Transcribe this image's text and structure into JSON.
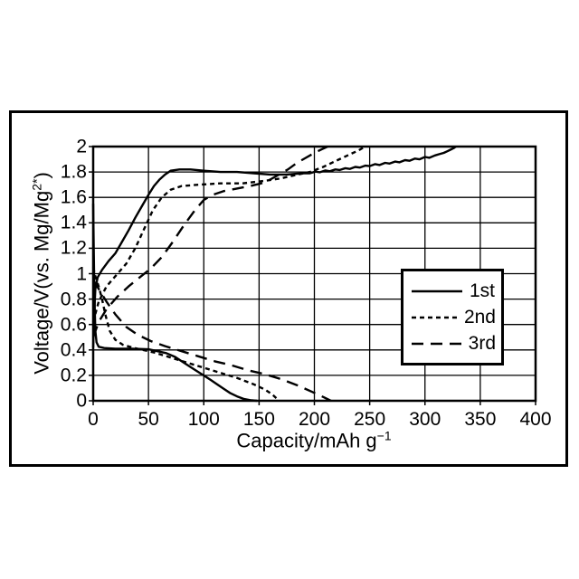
{
  "figure": {
    "background": "#ffffff",
    "frame_color": "#000000"
  },
  "colors": {
    "line": "#000000",
    "grid": "#000000",
    "background": "#ffffff"
  },
  "chart_data": {
    "type": "line",
    "title": "",
    "xlabel": {
      "prefix": "Capacity/mAh g",
      "sup": "−1",
      "suffix": ""
    },
    "ylabel": {
      "prefix": "Voltage/V(vs. Mg/Mg",
      "sup": "2*",
      "suffix": ")"
    },
    "xlim": [
      0,
      400
    ],
    "ylim": [
      0,
      2
    ],
    "grid": true,
    "x_ticks": [
      0,
      50,
      100,
      150,
      200,
      250,
      300,
      350,
      400
    ],
    "x_tick_labels": [
      "0",
      "50",
      "100",
      "150",
      "200",
      "250",
      "300",
      "350",
      "400"
    ],
    "y_ticks": [
      0,
      0.2,
      0.4,
      0.6,
      0.8,
      1,
      1.2,
      1.4,
      1.6,
      1.8,
      2
    ],
    "y_tick_labels": [
      "0",
      "0.2",
      "0.4",
      "0.6",
      "0.8",
      "1",
      "1.2",
      "1.4",
      "1.6",
      "1.8",
      "2"
    ],
    "legend": {
      "position": "inside-right",
      "entries": [
        {
          "label": "1st",
          "style": "solid"
        },
        {
          "label": "2nd",
          "style": "short-dash"
        },
        {
          "label": "3rd",
          "style": "long-dash"
        }
      ]
    },
    "series": [
      {
        "name": "1st",
        "branch": "discharge",
        "style": "solid",
        "points": [
          [
            0,
            1.55
          ],
          [
            0.5,
            1.2
          ],
          [
            1,
            0.9
          ],
          [
            1.5,
            0.7
          ],
          [
            2,
            0.55
          ],
          [
            3,
            0.46
          ],
          [
            5,
            0.425
          ],
          [
            10,
            0.415
          ],
          [
            20,
            0.41
          ],
          [
            35,
            0.41
          ],
          [
            50,
            0.405
          ],
          [
            58,
            0.39
          ],
          [
            66,
            0.375
          ],
          [
            74,
            0.345
          ],
          [
            82,
            0.3
          ],
          [
            90,
            0.255
          ],
          [
            98,
            0.21
          ],
          [
            106,
            0.165
          ],
          [
            112,
            0.13
          ],
          [
            118,
            0.095
          ],
          [
            124,
            0.06
          ],
          [
            130,
            0.035
          ],
          [
            136,
            0.015
          ],
          [
            142,
            0.005
          ],
          [
            148,
            0
          ]
        ]
      },
      {
        "name": "1st",
        "branch": "charge",
        "style": "solid",
        "points": [
          [
            0,
            0.42
          ],
          [
            1,
            0.7
          ],
          [
            2,
            0.88
          ],
          [
            4,
            0.97
          ],
          [
            8,
            1.03
          ],
          [
            14,
            1.1
          ],
          [
            20,
            1.16
          ],
          [
            26,
            1.25
          ],
          [
            32,
            1.34
          ],
          [
            38,
            1.44
          ],
          [
            44,
            1.53
          ],
          [
            50,
            1.62
          ],
          [
            55,
            1.69
          ],
          [
            60,
            1.74
          ],
          [
            65,
            1.78
          ],
          [
            70,
            1.81
          ],
          [
            78,
            1.82
          ],
          [
            88,
            1.82
          ],
          [
            100,
            1.81
          ],
          [
            115,
            1.8
          ],
          [
            130,
            1.8
          ],
          [
            145,
            1.79
          ],
          [
            160,
            1.78
          ],
          [
            175,
            1.78
          ],
          [
            190,
            1.79
          ],
          [
            196,
            1.79
          ],
          [
            201,
            1.803
          ],
          [
            205,
            1.798
          ],
          [
            210,
            1.812
          ],
          [
            214,
            1.806
          ],
          [
            219,
            1.82
          ],
          [
            223,
            1.816
          ],
          [
            228,
            1.83
          ],
          [
            232,
            1.824
          ],
          [
            237,
            1.84
          ],
          [
            241,
            1.835
          ],
          [
            246,
            1.85
          ],
          [
            250,
            1.846
          ],
          [
            255,
            1.862
          ],
          [
            259,
            1.855
          ],
          [
            264,
            1.872
          ],
          [
            268,
            1.866
          ],
          [
            273,
            1.882
          ],
          [
            277,
            1.876
          ],
          [
            282,
            1.893
          ],
          [
            286,
            1.888
          ],
          [
            291,
            1.905
          ],
          [
            295,
            1.9
          ],
          [
            300,
            1.918
          ],
          [
            304,
            1.912
          ],
          [
            309,
            1.93
          ],
          [
            313,
            1.94
          ],
          [
            317,
            1.95
          ],
          [
            320,
            1.962
          ],
          [
            323,
            1.975
          ],
          [
            326,
            1.988
          ],
          [
            328,
            2
          ]
        ]
      },
      {
        "name": "2nd",
        "branch": "discharge",
        "style": "short-dash",
        "points": [
          [
            0,
            1.05
          ],
          [
            2,
            0.98
          ],
          [
            5,
            0.9
          ],
          [
            8,
            0.8
          ],
          [
            11,
            0.68
          ],
          [
            15,
            0.55
          ],
          [
            20,
            0.48
          ],
          [
            27,
            0.44
          ],
          [
            35,
            0.42
          ],
          [
            45,
            0.4
          ],
          [
            55,
            0.38
          ],
          [
            70,
            0.34
          ],
          [
            85,
            0.3
          ],
          [
            100,
            0.26
          ],
          [
            115,
            0.22
          ],
          [
            130,
            0.18
          ],
          [
            145,
            0.13
          ],
          [
            155,
            0.09
          ],
          [
            162,
            0.05
          ],
          [
            168,
            0
          ]
        ]
      },
      {
        "name": "2nd",
        "branch": "charge",
        "style": "short-dash",
        "points": [
          [
            0,
            0.62
          ],
          [
            5,
            0.78
          ],
          [
            12,
            0.9
          ],
          [
            20,
            0.98
          ],
          [
            30,
            1.08
          ],
          [
            38,
            1.2
          ],
          [
            46,
            1.35
          ],
          [
            54,
            1.5
          ],
          [
            62,
            1.6
          ],
          [
            70,
            1.66
          ],
          [
            80,
            1.69
          ],
          [
            95,
            1.7
          ],
          [
            115,
            1.71
          ],
          [
            135,
            1.71
          ],
          [
            155,
            1.73
          ],
          [
            170,
            1.75
          ],
          [
            185,
            1.78
          ],
          [
            196,
            1.8
          ],
          [
            208,
            1.84
          ],
          [
            220,
            1.89
          ],
          [
            230,
            1.93
          ],
          [
            240,
            1.97
          ],
          [
            246,
            2
          ]
        ]
      },
      {
        "name": "3rd",
        "branch": "discharge",
        "style": "long-dash",
        "points": [
          [
            0,
            0.95
          ],
          [
            5,
            0.88
          ],
          [
            12,
            0.78
          ],
          [
            20,
            0.68
          ],
          [
            30,
            0.58
          ],
          [
            40,
            0.52
          ],
          [
            52,
            0.47
          ],
          [
            65,
            0.43
          ],
          [
            80,
            0.39
          ],
          [
            95,
            0.35
          ],
          [
            110,
            0.31
          ],
          [
            125,
            0.28
          ],
          [
            140,
            0.24
          ],
          [
            155,
            0.21
          ],
          [
            170,
            0.17
          ],
          [
            185,
            0.12
          ],
          [
            198,
            0.07
          ],
          [
            208,
            0.03
          ],
          [
            215,
            0
          ]
        ]
      },
      {
        "name": "3rd",
        "branch": "charge",
        "style": "long-dash",
        "points": [
          [
            0,
            0.5
          ],
          [
            5,
            0.62
          ],
          [
            12,
            0.72
          ],
          [
            22,
            0.82
          ],
          [
            32,
            0.9
          ],
          [
            42,
            0.97
          ],
          [
            52,
            1.04
          ],
          [
            62,
            1.13
          ],
          [
            72,
            1.25
          ],
          [
            82,
            1.38
          ],
          [
            92,
            1.5
          ],
          [
            100,
            1.58
          ],
          [
            108,
            1.62
          ],
          [
            118,
            1.65
          ],
          [
            130,
            1.67
          ],
          [
            142,
            1.69
          ],
          [
            152,
            1.71
          ],
          [
            160,
            1.74
          ],
          [
            168,
            1.78
          ],
          [
            176,
            1.82
          ],
          [
            184,
            1.87
          ],
          [
            192,
            1.91
          ],
          [
            200,
            1.95
          ],
          [
            207,
            1.98
          ],
          [
            212,
            2
          ]
        ]
      }
    ]
  }
}
